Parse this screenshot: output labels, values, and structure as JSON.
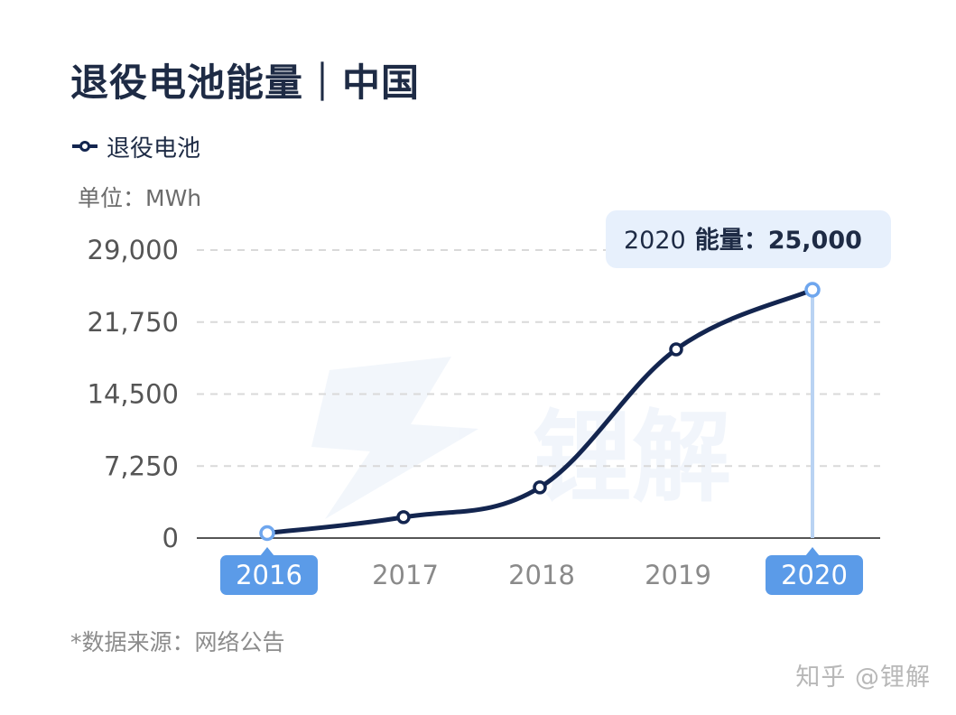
{
  "header": {
    "title": "退役电池能量｜中国",
    "unit": "单位：MWh"
  },
  "legend": {
    "series_label": "退役电池"
  },
  "tooltip": {
    "year": "2020",
    "label": "能量：",
    "value": "25,000"
  },
  "footer": {
    "source": "*数据来源：网络公告",
    "brand": "知乎 @锂解"
  },
  "colors": {
    "line": "#13254f",
    "accent": "#6ea6ee",
    "highlight_axis_tag": "#5b9be8",
    "grid": "#d9d9d9",
    "tooltip_bg": "#e7f0fc"
  },
  "chart_data": {
    "type": "line",
    "categories": [
      "2016",
      "2017",
      "2018",
      "2019",
      "2020"
    ],
    "series": [
      {
        "name": "退役电池",
        "values": [
          500,
          2100,
          5100,
          19000,
          25000
        ]
      }
    ],
    "yticks": [
      "0",
      "7,250",
      "14,500",
      "21,750",
      "29,000"
    ],
    "ylim": [
      0,
      29000
    ],
    "highlighted_categories": [
      "2016",
      "2020"
    ],
    "grid": true
  }
}
